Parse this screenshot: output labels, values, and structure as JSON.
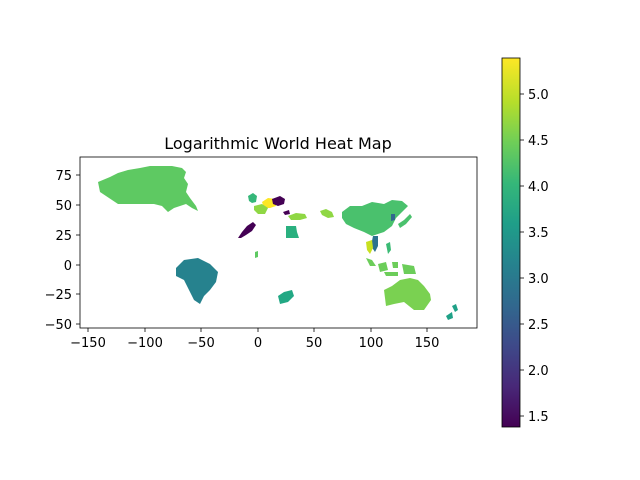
{
  "chart_data": {
    "type": "heatmap",
    "title": "Logarithmic World Heat Map",
    "xlabel": "",
    "ylabel": "",
    "x_ticks": [
      "−150",
      "−100",
      "−50",
      "0",
      "50",
      "100",
      "150"
    ],
    "y_ticks": [
      "75",
      "50",
      "25",
      "0",
      "−25",
      "−50"
    ],
    "colorbar_ticks": [
      "5.0",
      "4.5",
      "4.0",
      "3.5",
      "3.0",
      "2.5",
      "2.0",
      "1.5"
    ],
    "colormap": "viridis",
    "color_range": [
      1.38,
      5.38
    ],
    "grid": false,
    "regions": [
      {
        "region": "Canada",
        "value": 4.3,
        "color": "#5ec962"
      },
      {
        "region": "Brazil",
        "value": 3.3,
        "color": "#26828e"
      },
      {
        "region": "Iceland / North Atlantic",
        "value": 4.0,
        "color": "#35b779"
      },
      {
        "region": "Central Europe",
        "value": 5.4,
        "color": "#fde725"
      },
      {
        "region": "Western Europe",
        "value": 4.8,
        "color": "#8fd744"
      },
      {
        "region": "Eastern Europe",
        "value": 1.45,
        "color": "#440154"
      },
      {
        "region": "Morocco",
        "value": 1.45,
        "color": "#440154"
      },
      {
        "region": "Egypt",
        "value": 3.9,
        "color": "#2ab07f"
      },
      {
        "region": "Turkey",
        "value": 4.8,
        "color": "#8fd744"
      },
      {
        "region": "Central Asia",
        "value": 4.8,
        "color": "#8fd744"
      },
      {
        "region": "China",
        "value": 4.2,
        "color": "#4ac16d"
      },
      {
        "region": "Japan",
        "value": 4.2,
        "color": "#4ac16d"
      },
      {
        "region": "Korea",
        "value": 2.8,
        "color": "#31688e"
      },
      {
        "region": "Vietnam",
        "value": 3.0,
        "color": "#2c728e"
      },
      {
        "region": "Thailand",
        "value": 5.1,
        "color": "#c8e020"
      },
      {
        "region": "Philippines",
        "value": 4.1,
        "color": "#3bbb75"
      },
      {
        "region": "Indonesia",
        "value": 4.4,
        "color": "#6ccd5a"
      },
      {
        "region": "Australia",
        "value": 4.6,
        "color": "#7ad151"
      },
      {
        "region": "New Zealand",
        "value": 3.6,
        "color": "#1fa187"
      },
      {
        "region": "Southern Africa",
        "value": 3.7,
        "color": "#22a884"
      },
      {
        "region": "Gulf of Guinea",
        "value": 4.3,
        "color": "#5ec962"
      }
    ]
  },
  "colors": {
    "axes": "#000000",
    "background": "#ffffff",
    "viridis": [
      "#440154",
      "#482878",
      "#3e4989",
      "#31688e",
      "#26828e",
      "#1f9e89",
      "#35b779",
      "#6ece58",
      "#b5de2b",
      "#fde725"
    ]
  }
}
